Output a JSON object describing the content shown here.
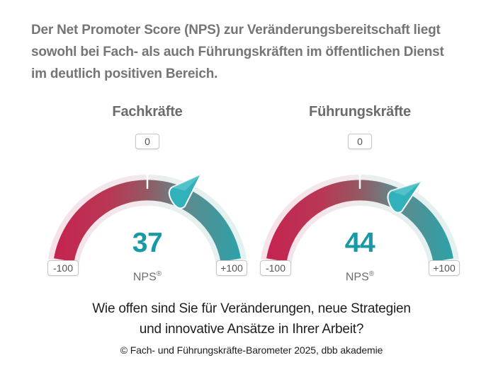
{
  "title": {
    "lines": [
      "Der Net Promoter Score (NPS) zur Veränderungsbereitschaft liegt",
      "sowohl bei Fach- als auch Führungskräften im öffentlichen Dienst",
      "im deutlich positiven Bereich."
    ]
  },
  "gauges": [
    {
      "label": "Fachkräfte",
      "value": 37,
      "zero_label": "0",
      "min_label": "-100",
      "max_label": "+100",
      "unit": "NPS",
      "registered_mark": "®"
    },
    {
      "label": "Führungskräfte",
      "value": 44,
      "zero_label": "0",
      "min_label": "-100",
      "max_label": "+100",
      "unit": "NPS",
      "registered_mark": "®"
    }
  ],
  "question": {
    "lines": [
      "Wie offen sind Sie für Veränderungen, neue Strategien",
      "und innovative Ansätze in Ihrer Arbeit?"
    ]
  },
  "source": "© Fach- und Führungskräfte-Barometer 2025, dbb akademie",
  "colors": {
    "negative_end": "#c5234f",
    "positive_end": "#2ba3a9",
    "value_text": "#1899a6",
    "needle": "#31b2bb",
    "halo_negative": "#f6e2e9",
    "halo_positive": "#e3f1f1",
    "title_text": "#757575"
  },
  "chart_data": {
    "type": "gauge",
    "categories": [
      "Fachkräfte",
      "Führungskräfte"
    ],
    "values": [
      37,
      44
    ],
    "range": [
      -100,
      100
    ],
    "zero_position": "top",
    "gauge_ticks": [
      "-100",
      "0",
      "+100"
    ],
    "unit": "NPS®",
    "title": "Der Net Promoter Score (NPS) zur Veränderungsbereitschaft liegt sowohl bei Fach- als auch Führungskräften im öffentlichen Dienst im deutlich positiven Bereich.",
    "question": "Wie offen sind Sie für Veränderungen, neue Strategien und innovative Ansätze in Ihrer Arbeit?",
    "source": "© Fach- und Führungskräfte-Barometer 2025, dbb akademie",
    "legend": "none",
    "color_scale": {
      "negative": "#c5234f",
      "positive": "#2ba3a9"
    }
  }
}
